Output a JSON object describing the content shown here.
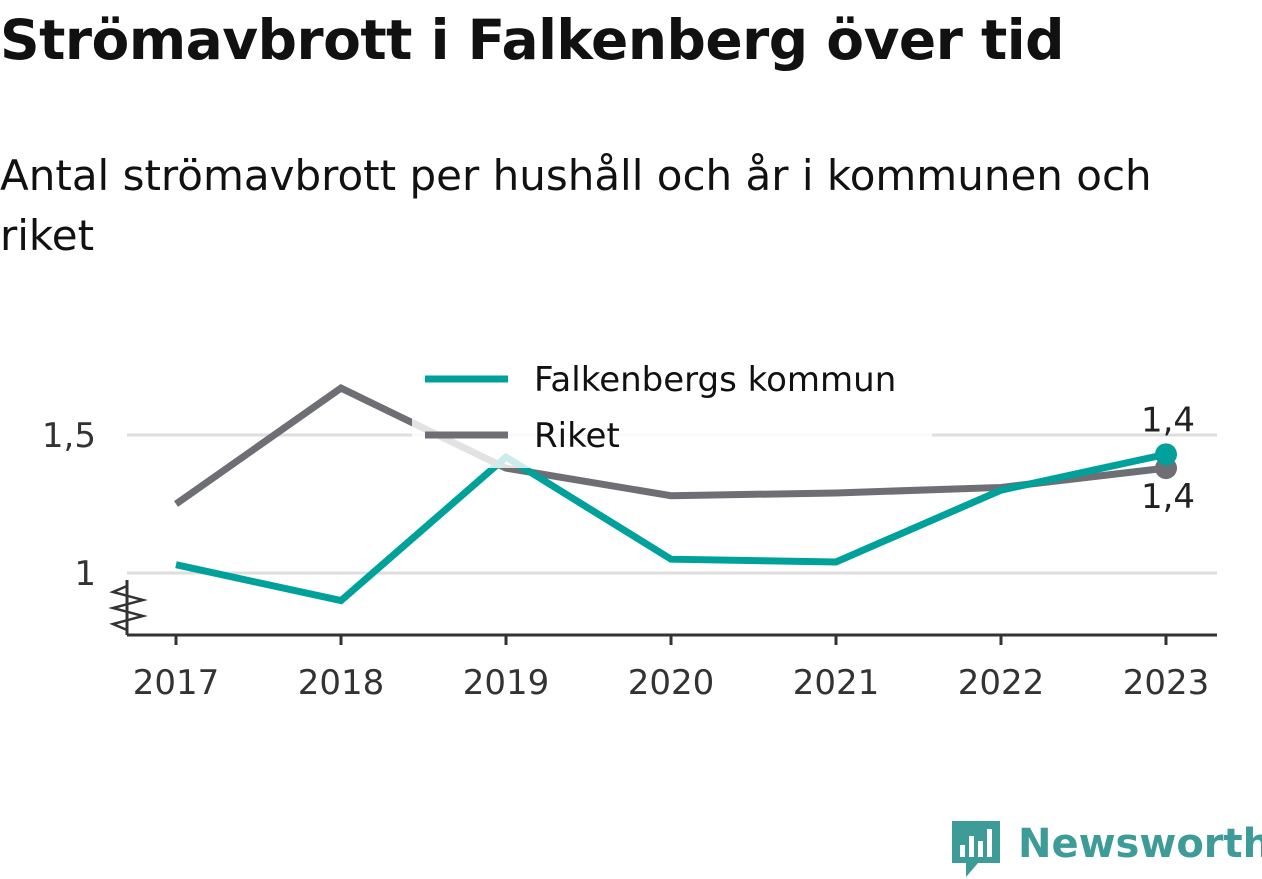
{
  "chart_data": {
    "type": "line",
    "title": "Strömavbrott i Falkenberg över tid",
    "subtitle": "Antal strömavbrott per hushåll och år i kommunen och riket",
    "x": [
      "2017",
      "2018",
      "2019",
      "2020",
      "2021",
      "2022",
      "2023"
    ],
    "series": [
      {
        "name": "Falkenbergs kommun",
        "color": "#00a19a",
        "values": [
          1.03,
          0.9,
          1.42,
          1.05,
          1.04,
          1.3,
          1.43
        ],
        "end_label": "1,4"
      },
      {
        "name": "Riket",
        "color": "#6e6e75",
        "values": [
          1.25,
          1.67,
          1.38,
          1.28,
          1.29,
          1.31,
          1.38
        ],
        "end_label": "1,4"
      }
    ],
    "y_ticks": [
      {
        "value": 1.0,
        "label": "1"
      },
      {
        "value": 1.5,
        "label": "1,5"
      }
    ],
    "ylim": [
      0.78,
      1.78
    ],
    "y_axis_broken": true,
    "grid": true,
    "legend_position": "top-center",
    "xlabel": "",
    "ylabel": ""
  },
  "branding": {
    "logo_icon": "newsworthy-chart-bubble-icon",
    "name": "Newsworthy",
    "color": "#3d9c97"
  }
}
